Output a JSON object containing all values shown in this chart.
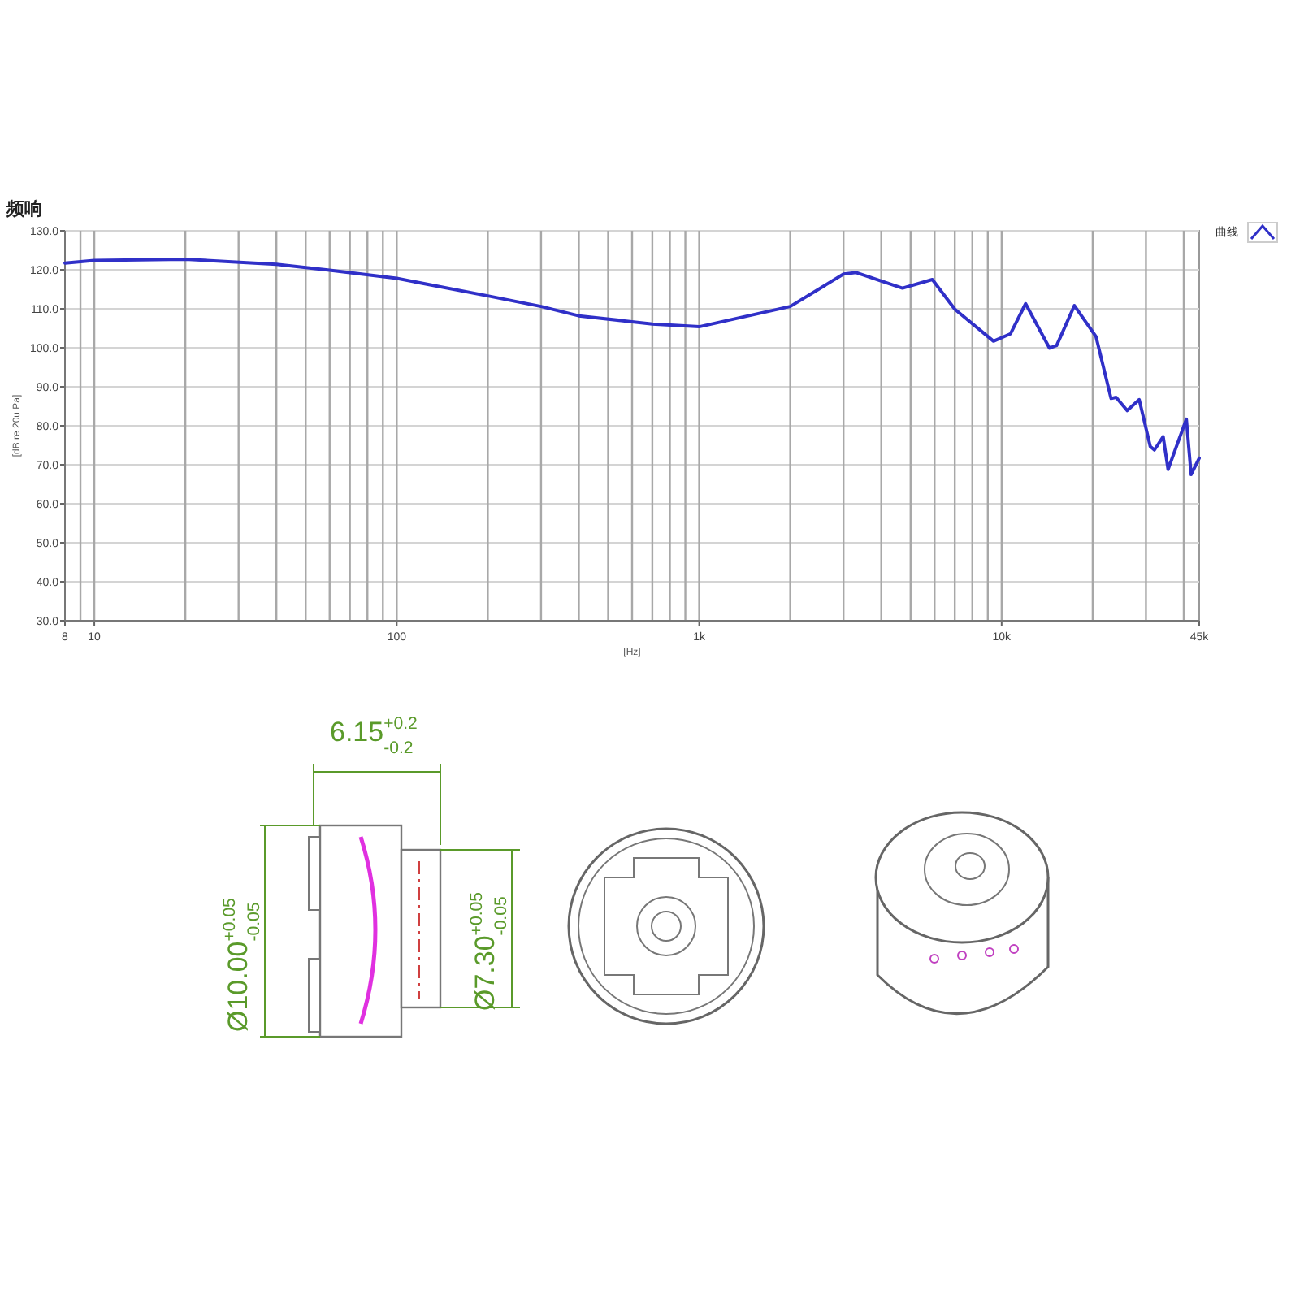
{
  "chart_data": {
    "type": "line",
    "title": "频响",
    "xlabel": "[Hz]",
    "ylabel": "[dB re 20u Pa]",
    "x": [
      8,
      10,
      20,
      40,
      60,
      100,
      200,
      300,
      400,
      700,
      1000,
      2000,
      3000,
      3300,
      4700,
      5900,
      7000,
      9400,
      10700,
      12000,
      14400,
      15200,
      17400,
      20500,
      23000,
      23900,
      26000,
      28500,
      31000,
      32000,
      34200,
      35500,
      40800,
      42300,
      45000
    ],
    "series": [
      {
        "name": "曲线",
        "color": "#3030c8",
        "values": [
          121.7,
          122.4,
          122.7,
          121.4,
          119.9,
          117.8,
          113.3,
          110.6,
          108.2,
          106.1,
          105.4,
          110.6,
          118.9,
          119.3,
          115.3,
          117.5,
          109.9,
          101.7,
          103.6,
          111.3,
          99.9,
          100.6,
          110.8,
          102.9,
          87.0,
          87.3,
          83.9,
          86.7,
          74.7,
          73.8,
          77.2,
          68.8,
          81.7,
          67.5,
          71.7
        ]
      }
    ],
    "xlim": [
      8,
      45000
    ],
    "ylim": [
      30,
      130
    ],
    "log": "x",
    "grid": true,
    "legend": "top right",
    "xticks": [
      {
        "value": 8,
        "label": "8"
      },
      10,
      100,
      {
        "value": 1000,
        "label": "1k"
      },
      {
        "value": 10000,
        "label": "10k"
      },
      {
        "value": 45000,
        "label": "45k"
      }
    ],
    "yticks": [
      {
        "value": 30,
        "label": "30.0"
      },
      {
        "value": 40,
        "label": "40.0"
      },
      {
        "value": 50,
        "label": "50.0"
      },
      {
        "value": 60,
        "label": "60.0"
      },
      {
        "value": 70,
        "label": "70.0"
      },
      {
        "value": 80,
        "label": "80.0"
      },
      {
        "value": 90,
        "label": "90.0"
      },
      {
        "value": 100,
        "label": "100.0"
      },
      {
        "value": 110,
        "label": "110.0"
      },
      {
        "value": 120,
        "label": "120.0"
      },
      {
        "value": 130,
        "label": "130.0"
      }
    ],
    "annotations": [
      "6.15$^{+0.2}$$_{-0.2}$",
      "Ø10.00$^{+0.05}$$_{-0.05}$",
      "Ø7.30$^{+0.05}$$_{-0.05}$"
    ]
  }
}
